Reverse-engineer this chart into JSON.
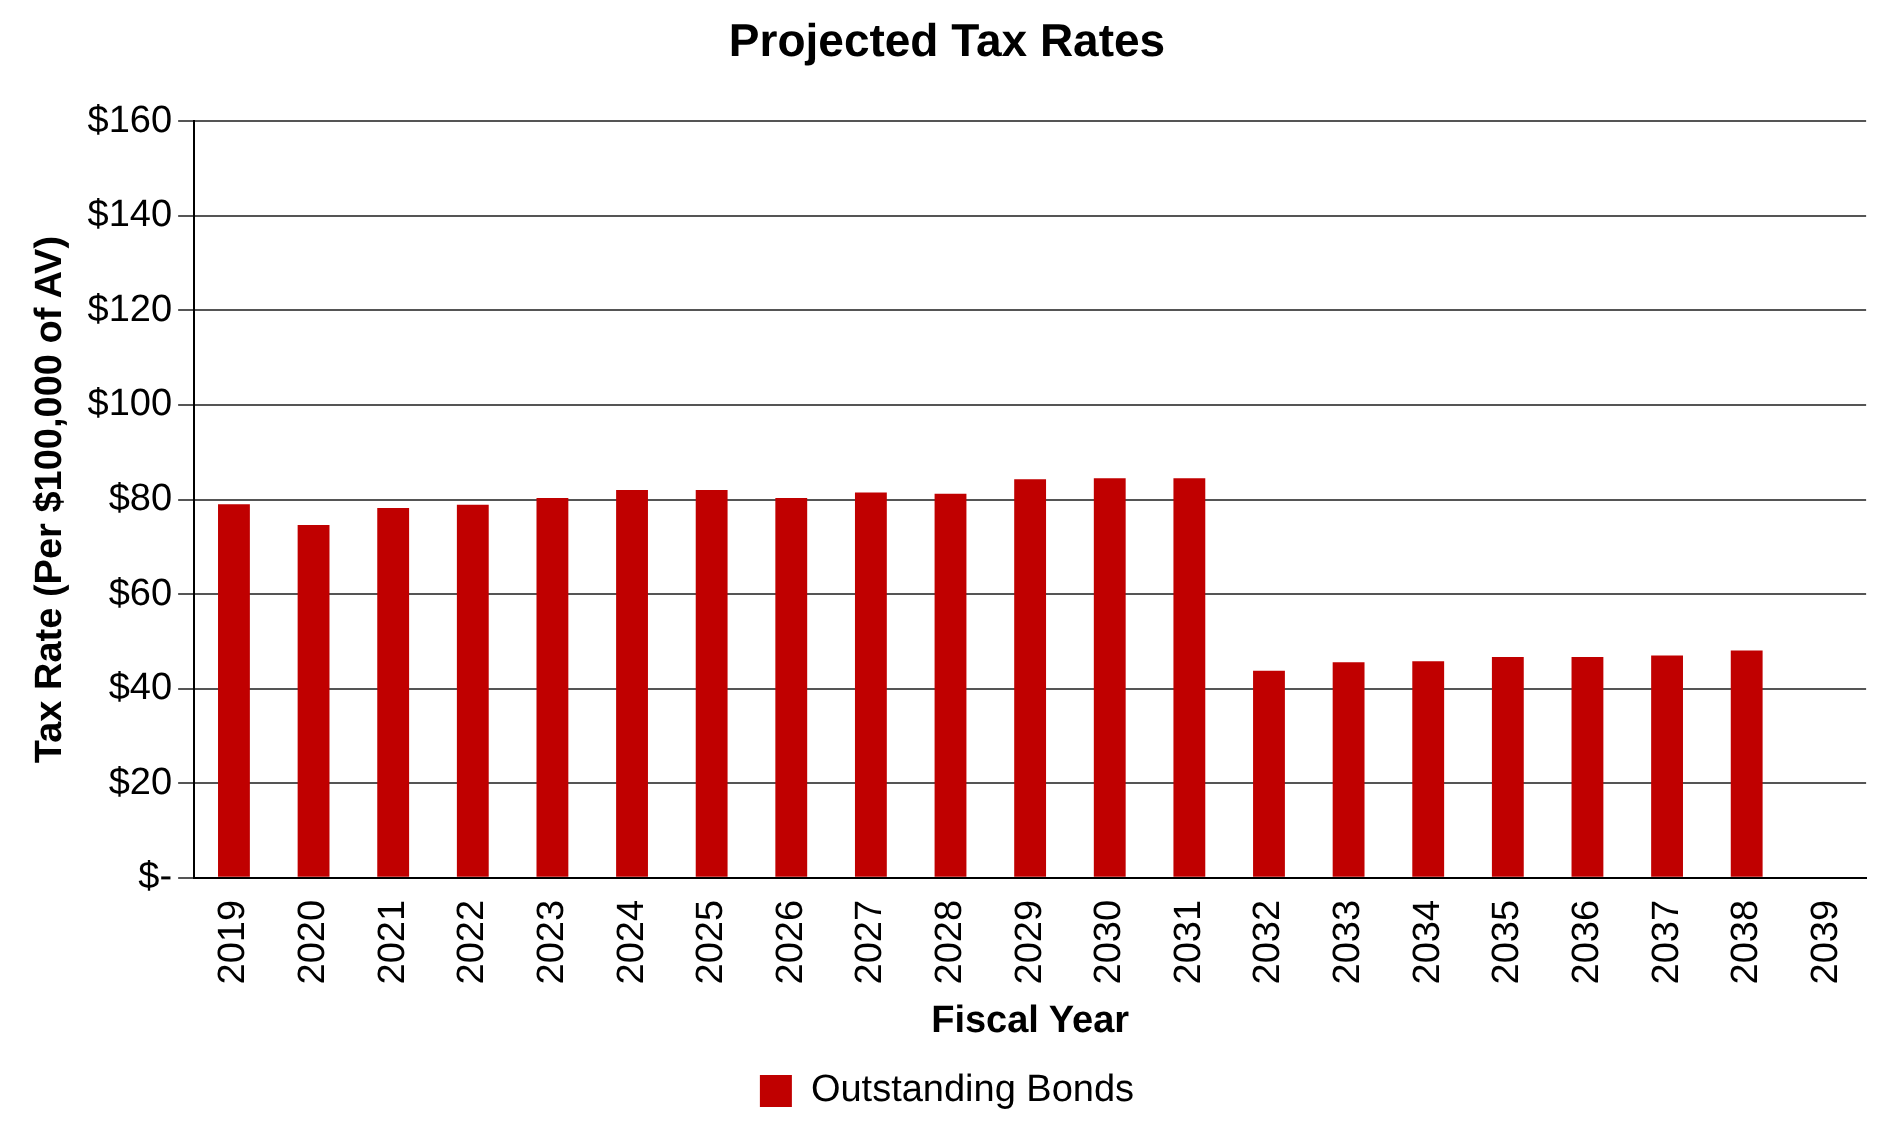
{
  "chart_data": {
    "type": "bar",
    "title": "Projected Tax Rates",
    "xlabel": "Fiscal Year",
    "ylabel": "Tax Rate (Per $100,000 of AV)",
    "categories": [
      "2019",
      "2020",
      "2021",
      "2022",
      "2023",
      "2024",
      "2025",
      "2026",
      "2027",
      "2028",
      "2029",
      "2030",
      "2031",
      "2032",
      "2033",
      "2034",
      "2035",
      "2036",
      "2037",
      "2038",
      "2039"
    ],
    "series": [
      {
        "name": "Outstanding Bonds",
        "color": "#c00000",
        "values": [
          79.0,
          74.6,
          78.2,
          78.9,
          80.3,
          82.0,
          82.0,
          80.3,
          81.5,
          81.2,
          84.3,
          84.5,
          84.5,
          43.8,
          45.6,
          45.8,
          46.7,
          46.7,
          47.0,
          48.1,
          null
        ]
      }
    ],
    "ylim": [
      0,
      160
    ],
    "yticks": [
      {
        "value": 0,
        "label": "$-"
      },
      {
        "value": 20,
        "label": "$20"
      },
      {
        "value": 40,
        "label": "$40"
      },
      {
        "value": 60,
        "label": "$60"
      },
      {
        "value": 80,
        "label": "$80"
      },
      {
        "value": 100,
        "label": "$100"
      },
      {
        "value": 120,
        "label": "$120"
      },
      {
        "value": 140,
        "label": "$140"
      },
      {
        "value": 160,
        "label": "$160"
      }
    ],
    "grid": "y",
    "legend": "bottom"
  }
}
